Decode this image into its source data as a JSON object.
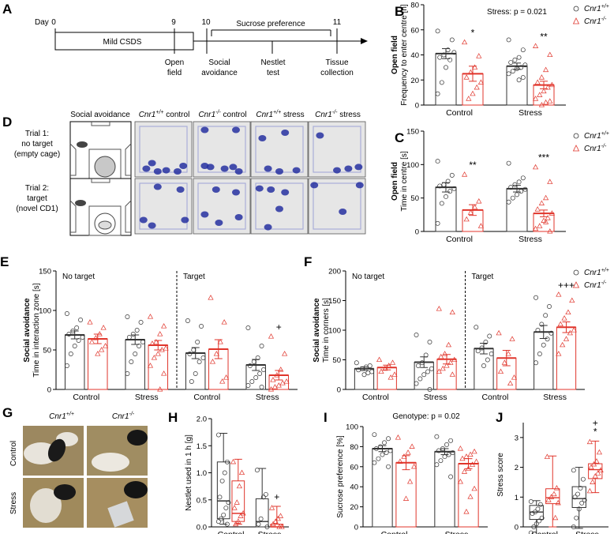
{
  "colors": {
    "wt": "#333333",
    "ko": "#e0352b",
    "heat_bg": "#e6e6e6",
    "heat_blue": "#2630a0"
  },
  "legend": {
    "wt": "Cnr1",
    "wt_sup": "+/+",
    "ko": "Cnr1",
    "ko_sup": "-/-"
  },
  "panel_A": {
    "letter": "A",
    "day_label": "Day",
    "days": [
      {
        "day": 0,
        "label": "0",
        "events": []
      },
      {
        "day": 9,
        "label": "9",
        "events": [
          "Open",
          "field"
        ]
      },
      {
        "day": 10,
        "label": "10",
        "events": [
          "Social",
          "avoidance"
        ]
      },
      {
        "day": 10.5,
        "label": "",
        "events": [
          "Nestlet",
          "test"
        ]
      },
      {
        "day": 11,
        "label": "11",
        "events": [
          "Tissue",
          "collection"
        ]
      }
    ],
    "csds_label": "Mild CSDS",
    "sucrose_label": "Sucrose preference"
  },
  "panel_D": {
    "letter": "D",
    "col_headers": [
      {
        "main": "Social avoidance",
        "sup": "",
        "rest": ""
      },
      {
        "main": "Cnr1",
        "sup": "+/+",
        "rest": " control"
      },
      {
        "main": "Cnr1",
        "sup": "-/-",
        "rest": " control"
      },
      {
        "main": "Cnr1",
        "sup": "+/+",
        "rest": " stress"
      },
      {
        "main": "Cnr1",
        "sup": "-/-",
        "rest": " stress"
      }
    ],
    "rows": [
      {
        "lines": [
          "Trial 1:",
          "no target",
          "(empty cage)"
        ]
      },
      {
        "lines": [
          "Trial 2:",
          "target",
          "(novel CD1)"
        ]
      }
    ]
  },
  "chart_data": [
    {
      "panel": "B",
      "type": "bar",
      "title": "Stress: p = 0.021",
      "ylabel_bold": "Open field",
      "ylabel": "Frequency to enter centre [n]",
      "categories": [
        "Control",
        "Stress"
      ],
      "ylim": [
        0,
        80
      ],
      "yticks": [
        0,
        20,
        40,
        60,
        80
      ],
      "series": [
        {
          "name": "Cnr1+/+",
          "values": [
            41,
            31
          ],
          "sem": [
            4,
            2.5
          ],
          "points": [
            [
              59,
              52,
              44,
              40,
              38,
              42,
              36,
              30,
              18,
              9
            ],
            [
              52,
              44,
              38,
              36,
              34,
              32,
              30,
              29,
              27,
              25,
              22,
              20
            ]
          ]
        },
        {
          "name": "Cnr1-/-",
          "values": [
            25,
            16
          ],
          "sem": [
            6,
            3
          ],
          "points": [
            [
              50,
              39,
              30,
              26,
              22,
              18,
              14,
              9,
              5
            ],
            [
              47,
              40,
              28,
              22,
              18,
              16,
              14,
              11,
              8,
              5,
              3,
              2,
              0
            ]
          ]
        }
      ],
      "annotations": [
        {
          "category": "Control",
          "series": 1,
          "text": "*"
        },
        {
          "category": "Stress",
          "series": 1,
          "text": "**"
        }
      ],
      "legend": "right"
    },
    {
      "panel": "C",
      "type": "bar",
      "title": "",
      "ylabel_bold": "Open field",
      "ylabel": "Time in centre [s]",
      "categories": [
        "Control",
        "Stress"
      ],
      "ylim": [
        0,
        150
      ],
      "yticks": [
        0,
        50,
        100,
        150
      ],
      "series": [
        {
          "name": "Cnr1+/+",
          "values": [
            66,
            64
          ],
          "sem": [
            7,
            5
          ],
          "points": [
            [
              105,
              84,
              75,
              70,
              68,
              64,
              60,
              52,
              42,
              12
            ],
            [
              102,
              80,
              74,
              70,
              66,
              63,
              60,
              55,
              50,
              44
            ]
          ]
        },
        {
          "name": "Cnr1-/-",
          "values": [
            32,
            27
          ],
          "sem": [
            8,
            5
          ],
          "points": [
            [
              85,
              45,
              36,
              28,
              18,
              8
            ],
            [
              96,
              74,
              50,
              42,
              33,
              27,
              20,
              16,
              8,
              4,
              0,
              14
            ]
          ]
        }
      ],
      "annotations": [
        {
          "category": "Control",
          "series": 1,
          "text": "**"
        },
        {
          "category": "Stress",
          "series": 1,
          "text": "***"
        }
      ],
      "legend": "right"
    },
    {
      "panel": "E",
      "type": "bar",
      "title": "",
      "ylabel_bold": "Social avoidance",
      "ylabel": "Time in interaction zone [s]",
      "group_labels": [
        "No target",
        "Target"
      ],
      "categories": [
        "Control",
        "Stress",
        "Control",
        "Stress"
      ],
      "ylim": [
        0,
        150
      ],
      "yticks": [
        0,
        50,
        100,
        150
      ],
      "series": [
        {
          "name": "Cnr1+/+",
          "values": [
            69,
            63,
            46,
            31
          ],
          "sem": [
            5,
            6,
            7,
            7
          ],
          "points": [
            [
              96,
              88,
              78,
              74,
              70,
              66,
              62,
              55,
              45,
              30
            ],
            [
              92,
              85,
              75,
              70,
              66,
              60,
              55,
              45,
              35,
              20
            ],
            [
              87,
              80,
              60,
              50,
              45,
              40,
              35,
              20,
              10
            ],
            [
              78,
              55,
              40,
              35,
              30,
              25,
              20,
              15,
              10,
              5,
              3
            ]
          ]
        },
        {
          "name": "Cnr1-/-",
          "values": [
            64,
            56,
            51,
            18
          ],
          "sem": [
            6,
            6,
            12,
            6
          ],
          "points": [
            [
              85,
              78,
              70,
              65,
              60,
              55,
              50,
              45
            ],
            [
              92,
              80,
              70,
              60,
              58,
              52,
              50,
              45,
              40,
              30,
              20,
              0
            ],
            [
              116,
              85,
              60,
              45,
              35,
              15,
              10
            ],
            [
              67,
              45,
              25,
              18,
              12,
              10,
              8,
              5,
              3,
              0
            ]
          ]
        }
      ],
      "annotations": [
        {
          "category_index": 3,
          "series": 1,
          "text": "+"
        }
      ],
      "legend": ""
    },
    {
      "panel": "F",
      "type": "bar",
      "title": "",
      "ylabel_bold": "Social avoidance",
      "ylabel": "Time in corners [s]",
      "group_labels": [
        "No target",
        "Target"
      ],
      "categories": [
        "Control",
        "Stress",
        "Control",
        "Stress"
      ],
      "ylim": [
        0,
        200
      ],
      "yticks": [
        0,
        50,
        100,
        150,
        200
      ],
      "series": [
        {
          "name": "Cnr1+/+",
          "values": [
            35,
            46,
            69,
            97
          ],
          "sem": [
            3,
            9,
            9,
            11
          ],
          "points": [
            [
              45,
              40,
              38,
              35,
              33,
              30,
              28,
              25
            ],
            [
              92,
              80,
              58,
              45,
              40,
              35,
              30,
              25,
              18,
              10,
              0
            ],
            [
              105,
              90,
              80,
              70,
              65,
              60,
              50,
              40
            ],
            [
              155,
              140,
              125,
              110,
              100,
              95,
              85,
              75,
              60,
              45
            ]
          ]
        },
        {
          "name": "Cnr1-/-",
          "values": [
            37,
            51,
            53,
            105
          ],
          "sem": [
            4,
            8,
            13,
            9
          ],
          "points": [
            [
              50,
              45,
              40,
              35,
              30,
              25,
              20
            ],
            [
              136,
              130,
              75,
              60,
              55,
              50,
              45,
              40,
              35,
              30,
              25
            ],
            [
              95,
              85,
              60,
              45,
              30,
              20,
              10
            ],
            [
              160,
              150,
              130,
              120,
              110,
              100,
              95,
              85,
              75,
              60
            ]
          ]
        }
      ],
      "annotations": [
        {
          "category_index": 3,
          "series": 1,
          "text": "+++"
        }
      ],
      "legend": "right"
    },
    {
      "panel": "H",
      "type": "box",
      "title": "",
      "ylabel": "Nestlet used in 1 h [g]",
      "categories": [
        "Control",
        "Stress"
      ],
      "ylim": [
        0,
        2
      ],
      "yticks": [
        0.0,
        0.5,
        1.0,
        1.5,
        2.0
      ],
      "series": [
        {
          "name": "Cnr1+/+",
          "box": [
            [
              0.05,
              0.15,
              0.48,
              1.2,
              1.73
            ],
            [
              0.0,
              0.0,
              0.1,
              0.52,
              1.08
            ]
          ],
          "points": [
            [
              1.7,
              1.2,
              1.0,
              0.85,
              0.55,
              0.45,
              0.35,
              0.22,
              0.15,
              0.1,
              0.05
            ],
            [
              1.05,
              0.6,
              0.55,
              0.15,
              0.05,
              0.0
            ]
          ]
        },
        {
          "name": "Cnr1-/-",
          "box": [
            [
              0.05,
              0.1,
              0.25,
              0.85,
              1.25
            ],
            [
              0.0,
              0.0,
              0.0,
              0.05,
              0.38
            ]
          ],
          "points": [
            [
              1.2,
              1.0,
              0.75,
              0.45,
              0.35,
              0.25,
              0.2,
              0.1,
              0.05
            ],
            [
              0.35,
              0.2,
              0.15,
              0.1,
              0.05,
              0.0,
              0.0
            ]
          ]
        }
      ],
      "annotations": [
        {
          "category": "Stress",
          "series": 1,
          "text": "+"
        }
      ],
      "legend": ""
    },
    {
      "panel": "I",
      "type": "bar",
      "title": "Genotype: p = 0.02",
      "ylabel": "Sucrose preference [%]",
      "categories": [
        "Control",
        "Stress"
      ],
      "ylim": [
        0,
        100
      ],
      "yticks": [
        0,
        20,
        40,
        60,
        80,
        100
      ],
      "series": [
        {
          "name": "Cnr1+/+",
          "values": [
            78,
            75
          ],
          "sem": [
            3,
            3
          ],
          "points": [
            [
              92,
              88,
              84,
              80,
              78,
              76,
              74,
              72,
              68,
              64,
              60
            ],
            [
              90,
              86,
              82,
              78,
              76,
              74,
              72,
              70,
              66,
              62,
              50
            ]
          ]
        },
        {
          "name": "Cnr1-/-",
          "values": [
            64,
            63
          ],
          "sem": [
            7,
            5
          ],
          "points": [
            [
              89,
              80,
              74,
              70,
              65,
              60,
              45,
              28
            ],
            [
              78,
              75,
              72,
              70,
              68,
              65,
              62,
              58,
              55,
              45,
              38,
              30,
              15
            ]
          ]
        }
      ],
      "annotations": [],
      "legend": ""
    },
    {
      "panel": "J",
      "type": "box",
      "title": "",
      "ylabel": "Stress score",
      "categories": [
        "Control",
        "Stress"
      ],
      "ylim": [
        0,
        3.5
      ],
      "yticks": [
        0,
        1,
        2,
        3
      ],
      "series": [
        {
          "name": "Cnr1+/+",
          "box": [
            [
              -0.25,
              0.25,
              0.5,
              0.72,
              0.88
            ],
            [
              -0.05,
              0.65,
              0.95,
              1.35,
              2.0
            ]
          ],
          "points": [
            [
              0.85,
              0.75,
              0.6,
              0.5,
              0.45,
              0.3,
              0.2,
              0.1,
              0.0,
              -0.2
            ],
            [
              1.9,
              1.6,
              1.3,
              1.1,
              1.0,
              0.9,
              0.8,
              0.6,
              0.3,
              0.0
            ]
          ]
        },
        {
          "name": "Cnr1-/-",
          "box": [
            [
              0.0,
              0.78,
              0.98,
              1.28,
              2.38
            ],
            [
              1.15,
              1.62,
              1.92,
              2.12,
              2.88
            ]
          ],
          "points": [
            [
              2.35,
              1.3,
              1.1,
              1.0,
              0.9,
              0.8,
              0.3
            ],
            [
              2.85,
              2.5,
              2.2,
              2.1,
              2.0,
              1.9,
              1.8,
              1.7,
              1.5,
              1.2
            ]
          ]
        }
      ],
      "annotations": [
        {
          "category": "Stress",
          "series": 1,
          "text": "*"
        },
        {
          "category": "Stress",
          "series": 1,
          "text": "+"
        }
      ],
      "legend": ""
    }
  ],
  "panel_G": {
    "letter": "G",
    "col_headers": [
      {
        "main": "Cnr1",
        "sup": "+/+"
      },
      {
        "main": "Cnr1",
        "sup": "-/-"
      }
    ],
    "row_labels": [
      "Control",
      "Stress"
    ]
  }
}
